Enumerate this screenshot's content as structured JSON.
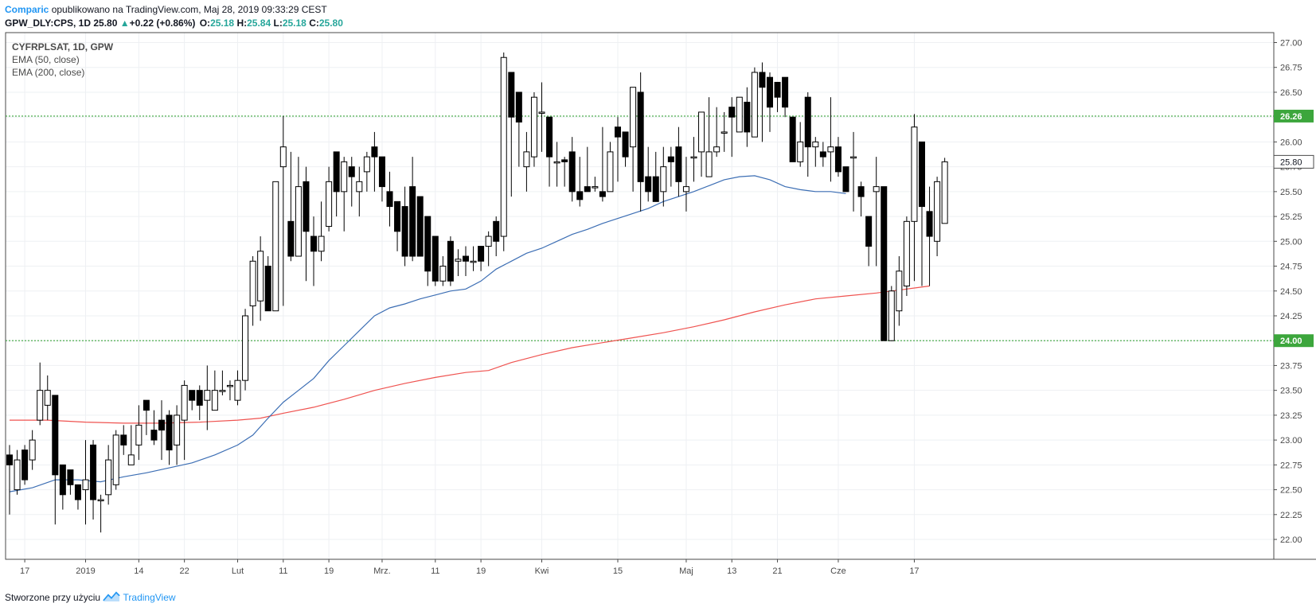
{
  "header": {
    "author": "Comparic",
    "published_text": "opublikowano na TradingView.com, Maj 28, 2019 09:33:29 CEST",
    "symbol_line": "GPW_DLY:CPS, 1D",
    "last_price": "25.80",
    "change": "+0.22 (+0.86%)",
    "open_label": "O:",
    "open": "25.18",
    "high_label": "H:",
    "high": "25.84",
    "low_label": "L:",
    "low": "25.18",
    "close_label": "C:",
    "close": "25.80"
  },
  "legend": {
    "symbol": "CYFRPLSAT, 1D, GPW",
    "ema50": "EMA (50, close)",
    "ema200": "EMA (200, close)"
  },
  "footer": {
    "text": "Stworzone przy użyciu",
    "brand": "TradingView"
  },
  "colors": {
    "ema50": "#3c6eb4",
    "ema200": "#ef5350",
    "level_line": "#3ca63c",
    "up_candle": "#ffffff",
    "down_candle": "#000000",
    "brand": "#2196f3"
  },
  "chart_data": {
    "type": "candlestick",
    "ylim": [
      21.8,
      27.1
    ],
    "y_ticks": [
      "22.00",
      "22.25",
      "22.50",
      "22.75",
      "23.00",
      "23.25",
      "23.50",
      "23.75",
      "24.00",
      "24.25",
      "24.50",
      "24.75",
      "25.00",
      "25.25",
      "25.50",
      "25.75",
      "26.00",
      "26.25",
      "26.50",
      "26.75",
      "27.00"
    ],
    "x_labels": [
      "17",
      "2019",
      "14",
      "22",
      "Lut",
      "11",
      "19",
      "Mrz.",
      "11",
      "19",
      "Kwi",
      "15",
      "Maj",
      "13",
      "21",
      "Cze",
      "17"
    ],
    "x_label_slots": [
      2,
      10,
      17,
      23,
      30,
      36,
      42,
      49,
      56,
      62,
      70,
      80,
      89,
      95,
      101,
      109,
      119
    ],
    "total_slots": 123,
    "horizontal_levels": [
      {
        "value": 26.26,
        "label": "26.26"
      },
      {
        "value": 24.0,
        "label": "24.00"
      }
    ],
    "current_price": {
      "value": 25.8,
      "label": "25.80"
    },
    "candles": [
      [
        22.85,
        22.75,
        22.95,
        22.25
      ],
      [
        22.5,
        22.8,
        22.9,
        22.45
      ],
      [
        22.9,
        22.6,
        22.95,
        22.55
      ],
      [
        22.8,
        23.0,
        23.1,
        22.7
      ],
      [
        23.2,
        23.5,
        23.78,
        23.15
      ],
      [
        23.35,
        23.5,
        23.65,
        23.2
      ],
      [
        23.45,
        22.65,
        23.45,
        22.15
      ],
      [
        22.75,
        22.45,
        22.75,
        22.3
      ],
      [
        22.7,
        22.55,
        22.7,
        22.45
      ],
      [
        22.55,
        22.4,
        22.55,
        22.3
      ],
      [
        22.5,
        22.6,
        23.0,
        22.15
      ],
      [
        22.95,
        22.4,
        23.0,
        22.2
      ],
      [
        22.4,
        22.4,
        22.45,
        22.07
      ],
      [
        22.45,
        22.8,
        22.95,
        22.35
      ],
      [
        22.55,
        23.05,
        23.1,
        22.5
      ],
      [
        23.05,
        22.95,
        23.15,
        22.85
      ],
      [
        22.75,
        22.85,
        23.15,
        22.75
      ],
      [
        22.95,
        23.15,
        23.35,
        22.8
      ],
      [
        23.4,
        23.3,
        23.4,
        23.05
      ],
      [
        23.1,
        23.0,
        23.3,
        22.95
      ],
      [
        23.2,
        23.1,
        23.4,
        22.8
      ],
      [
        23.25,
        22.9,
        23.3,
        22.75
      ],
      [
        22.95,
        23.25,
        23.35,
        22.75
      ],
      [
        23.2,
        23.55,
        23.6,
        22.8
      ],
      [
        23.5,
        23.4,
        23.5,
        23.3
      ],
      [
        23.5,
        23.35,
        23.55,
        23.2
      ],
      [
        23.4,
        23.5,
        23.75,
        23.1
      ],
      [
        23.3,
        23.5,
        23.7,
        23.3
      ],
      [
        23.5,
        23.5,
        23.7,
        23.45
      ],
      [
        23.55,
        23.55,
        23.6,
        23.4
      ],
      [
        23.4,
        23.6,
        23.7,
        23.35
      ],
      [
        23.6,
        24.25,
        24.32,
        23.5
      ],
      [
        24.35,
        24.8,
        24.85,
        24.15
      ],
      [
        24.4,
        24.9,
        25.05,
        24.2
      ],
      [
        24.75,
        24.3,
        24.85,
        24.3
      ],
      [
        24.3,
        25.6,
        25.55,
        24.3
      ],
      [
        25.75,
        25.95,
        26.26,
        24.35
      ],
      [
        25.2,
        24.85,
        25.9,
        24.8
      ],
      [
        24.85,
        25.55,
        25.85,
        24.9
      ],
      [
        25.6,
        25.1,
        25.75,
        24.6
      ],
      [
        25.05,
        24.9,
        25.25,
        24.55
      ],
      [
        24.9,
        25.05,
        25.4,
        24.8
      ],
      [
        25.15,
        25.6,
        25.75,
        25.1
      ],
      [
        25.9,
        25.5,
        25.9,
        25.25
      ],
      [
        25.5,
        25.8,
        25.85,
        25.1
      ],
      [
        25.75,
        25.65,
        25.85,
        25.35
      ],
      [
        25.5,
        25.6,
        25.75,
        25.25
      ],
      [
        25.7,
        25.85,
        25.9,
        25.5
      ],
      [
        25.95,
        25.85,
        26.1,
        25.5
      ],
      [
        25.85,
        25.55,
        25.85,
        25.4
      ],
      [
        25.5,
        25.35,
        25.7,
        25.15
      ],
      [
        25.4,
        25.1,
        25.35,
        24.9
      ],
      [
        25.35,
        24.85,
        25.55,
        24.75
      ],
      [
        25.55,
        24.85,
        25.85,
        24.8
      ],
      [
        25.45,
        24.85,
        25.45,
        24.85
      ],
      [
        25.25,
        24.7,
        25.25,
        24.55
      ],
      [
        25.05,
        24.6,
        25.0,
        24.55
      ],
      [
        24.6,
        24.75,
        24.85,
        24.55
      ],
      [
        25.0,
        24.6,
        25.05,
        24.55
      ],
      [
        24.8,
        24.82,
        24.92,
        24.65
      ],
      [
        24.85,
        24.8,
        24.95,
        24.65
      ],
      [
        24.8,
        24.8,
        24.95,
        24.7
      ],
      [
        24.95,
        24.8,
        24.95,
        24.7
      ],
      [
        24.95,
        25.05,
        25.1,
        24.75
      ],
      [
        25.2,
        25.0,
        25.25,
        24.85
      ],
      [
        25.05,
        26.85,
        26.9,
        24.9
      ],
      [
        26.7,
        26.25,
        26.7,
        25.45
      ],
      [
        26.5,
        26.2,
        26.35,
        25.75
      ],
      [
        25.75,
        25.9,
        26.1,
        25.5
      ],
      [
        25.85,
        26.45,
        26.5,
        25.75
      ],
      [
        26.3,
        26.3,
        26.6,
        25.9
      ],
      [
        26.25,
        25.85,
        26.25,
        25.55
      ],
      [
        25.8,
        25.8,
        26.0,
        25.55
      ],
      [
        25.82,
        25.8,
        25.85,
        25.55
      ],
      [
        25.9,
        25.5,
        26.05,
        25.4
      ],
      [
        25.5,
        25.42,
        25.85,
        25.35
      ],
      [
        25.55,
        25.5,
        25.95,
        25.55
      ],
      [
        25.55,
        25.55,
        25.65,
        25.5
      ],
      [
        25.5,
        25.45,
        26.15,
        25.4
      ],
      [
        25.5,
        25.9,
        26.0,
        25.5
      ],
      [
        26.15,
        26.05,
        26.25,
        25.6
      ],
      [
        26.1,
        25.85,
        26.1,
        25.75
      ],
      [
        25.95,
        26.55,
        26.55,
        25.5
      ],
      [
        26.5,
        25.6,
        26.7,
        25.3
      ],
      [
        25.65,
        25.5,
        25.95,
        25.4
      ],
      [
        25.65,
        25.4,
        25.9,
        25.4
      ],
      [
        25.5,
        25.75,
        25.95,
        25.35
      ],
      [
        25.85,
        25.8,
        25.95,
        25.55
      ],
      [
        25.95,
        25.6,
        26.15,
        25.45
      ],
      [
        25.5,
        25.55,
        25.85,
        25.3
      ],
      [
        25.85,
        25.85,
        26.05,
        25.6
      ],
      [
        25.9,
        26.3,
        26.25,
        25.65
      ],
      [
        25.65,
        25.9,
        26.45,
        25.9
      ],
      [
        25.9,
        25.95,
        26.35,
        25.85
      ],
      [
        26.1,
        26.1,
        26.3,
        25.9
      ],
      [
        26.35,
        26.25,
        26.45,
        25.85
      ],
      [
        26.1,
        26.45,
        26.45,
        26.25
      ],
      [
        26.4,
        26.1,
        26.55,
        25.95
      ],
      [
        26.05,
        26.7,
        26.75,
        26.05
      ],
      [
        26.7,
        26.55,
        26.8,
        26.0
      ],
      [
        26.65,
        26.35,
        26.7,
        26.1
      ],
      [
        26.6,
        26.45,
        26.6,
        26.3
      ],
      [
        26.65,
        26.35,
        26.65,
        26.25
      ],
      [
        26.25,
        25.8,
        26.2,
        25.8
      ],
      [
        25.8,
        26.0,
        26.2,
        25.75
      ],
      [
        26.45,
        25.95,
        26.5,
        25.65
      ],
      [
        25.95,
        26.0,
        26.05,
        25.75
      ],
      [
        25.9,
        25.85,
        26.0,
        25.75
      ],
      [
        25.9,
        25.95,
        26.45,
        25.6
      ],
      [
        25.95,
        25.7,
        26.05,
        25.65
      ],
      [
        25.75,
        25.5,
        25.75,
        25.5
      ],
      [
        25.85,
        25.85,
        26.1,
        25.3
      ],
      [
        25.55,
        25.45,
        25.6,
        25.25
      ],
      [
        25.25,
        24.95,
        25.25,
        24.75
      ],
      [
        25.5,
        25.55,
        25.85,
        24.75
      ],
      [
        25.55,
        24.0,
        25.5,
        24.0
      ],
      [
        24.0,
        24.5,
        24.55,
        24.0
      ],
      [
        24.3,
        24.7,
        24.85,
        24.15
      ],
      [
        24.55,
        25.2,
        25.25,
        24.45
      ],
      [
        25.2,
        26.15,
        26.28,
        24.6
      ],
      [
        26.0,
        25.35,
        26.0,
        24.55
      ],
      [
        25.3,
        25.05,
        25.55,
        24.55
      ],
      [
        25.0,
        25.6,
        25.65,
        24.85
      ],
      [
        25.18,
        25.8,
        25.84,
        25.18
      ]
    ],
    "ema50": [
      [
        0,
        22.48
      ],
      [
        3,
        22.52
      ],
      [
        6,
        22.6
      ],
      [
        9,
        22.6
      ],
      [
        12,
        22.58
      ],
      [
        15,
        22.63
      ],
      [
        18,
        22.67
      ],
      [
        21,
        22.72
      ],
      [
        24,
        22.77
      ],
      [
        27,
        22.85
      ],
      [
        30,
        22.95
      ],
      [
        32,
        23.05
      ],
      [
        34,
        23.22
      ],
      [
        36,
        23.38
      ],
      [
        38,
        23.5
      ],
      [
        40,
        23.62
      ],
      [
        42,
        23.8
      ],
      [
        44,
        23.95
      ],
      [
        46,
        24.1
      ],
      [
        48,
        24.25
      ],
      [
        50,
        24.33
      ],
      [
        52,
        24.37
      ],
      [
        54,
        24.42
      ],
      [
        56,
        24.46
      ],
      [
        58,
        24.5
      ],
      [
        60,
        24.52
      ],
      [
        62,
        24.6
      ],
      [
        64,
        24.72
      ],
      [
        66,
        24.8
      ],
      [
        68,
        24.88
      ],
      [
        70,
        24.93
      ],
      [
        72,
        25.0
      ],
      [
        74,
        25.07
      ],
      [
        76,
        25.12
      ],
      [
        78,
        25.18
      ],
      [
        80,
        25.23
      ],
      [
        82,
        25.28
      ],
      [
        84,
        25.33
      ],
      [
        86,
        25.4
      ],
      [
        88,
        25.45
      ],
      [
        90,
        25.5
      ],
      [
        92,
        25.56
      ],
      [
        94,
        25.62
      ],
      [
        96,
        25.65
      ],
      [
        98,
        25.66
      ],
      [
        100,
        25.62
      ],
      [
        102,
        25.55
      ],
      [
        104,
        25.52
      ],
      [
        106,
        25.5
      ],
      [
        108,
        25.5
      ],
      [
        110,
        25.48
      ]
    ],
    "ema200": [
      [
        0,
        23.2
      ],
      [
        5,
        23.2
      ],
      [
        10,
        23.18
      ],
      [
        15,
        23.17
      ],
      [
        20,
        23.17
      ],
      [
        25,
        23.18
      ],
      [
        30,
        23.2
      ],
      [
        33,
        23.22
      ],
      [
        36,
        23.27
      ],
      [
        40,
        23.33
      ],
      [
        44,
        23.41
      ],
      [
        48,
        23.5
      ],
      [
        52,
        23.57
      ],
      [
        56,
        23.63
      ],
      [
        60,
        23.68
      ],
      [
        63,
        23.7
      ],
      [
        66,
        23.78
      ],
      [
        70,
        23.86
      ],
      [
        74,
        23.93
      ],
      [
        78,
        23.98
      ],
      [
        82,
        24.03
      ],
      [
        86,
        24.08
      ],
      [
        90,
        24.14
      ],
      [
        94,
        24.21
      ],
      [
        98,
        24.29
      ],
      [
        102,
        24.36
      ],
      [
        106,
        24.42
      ],
      [
        110,
        24.45
      ],
      [
        114,
        24.48
      ],
      [
        118,
        24.52
      ],
      [
        121,
        24.55
      ]
    ]
  }
}
